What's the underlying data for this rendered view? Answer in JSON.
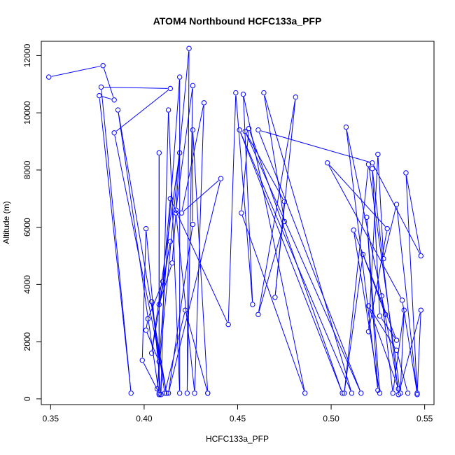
{
  "chart_data": {
    "type": "scatter",
    "title": "ATOM4 Northbound HCFC133a_PFP",
    "xlabel": "HCFC133a_PFP",
    "ylabel": "Altitude (m)",
    "xlim": [
      0.345,
      0.555
    ],
    "ylim": [
      -200,
      12500
    ],
    "x_ticks": [
      0.35,
      0.4,
      0.45,
      0.5,
      0.55
    ],
    "x_tick_labels": [
      "0.35",
      "0.40",
      "0.45",
      "0.50",
      "0.55"
    ],
    "y_ticks": [
      0,
      2000,
      4000,
      6000,
      8000,
      10000,
      12000
    ],
    "y_tick_labels": [
      "0",
      "2000",
      "4000",
      "6000",
      "8000",
      "10000",
      "12000"
    ],
    "grid": false,
    "series": [
      {
        "color": "#0000ff",
        "marker": "open-circle",
        "connected": true,
        "points": [
          [
            0.349,
            11250
          ],
          [
            0.378,
            11650
          ],
          [
            0.384,
            10450
          ],
          [
            0.376,
            10600
          ],
          [
            0.393,
            200
          ],
          [
            0.377,
            10900
          ],
          [
            0.414,
            10850
          ],
          [
            0.384,
            9300
          ],
          [
            0.412,
            200
          ],
          [
            0.386,
            10100
          ],
          [
            0.408,
            150
          ],
          [
            0.408,
            8600
          ],
          [
            0.408,
            200
          ],
          [
            0.399,
            1350
          ],
          [
            0.401,
            5950
          ],
          [
            0.409,
            150
          ],
          [
            0.413,
            10100
          ],
          [
            0.419,
            200
          ],
          [
            0.419,
            11250
          ],
          [
            0.407,
            350
          ],
          [
            0.424,
            12250
          ],
          [
            0.423,
            200
          ],
          [
            0.426,
            10950
          ],
          [
            0.417,
            6600
          ],
          [
            0.419,
            8600
          ],
          [
            0.404,
            1600
          ],
          [
            0.414,
            5500
          ],
          [
            0.408,
            3300
          ],
          [
            0.415,
            4750
          ],
          [
            0.417,
            6500
          ],
          [
            0.427,
            200
          ],
          [
            0.432,
            10350
          ],
          [
            0.42,
            6500
          ],
          [
            0.441,
            7700
          ],
          [
            0.413,
            200
          ],
          [
            0.426,
            6100
          ],
          [
            0.426,
            9400
          ],
          [
            0.434,
            200
          ],
          [
            0.434,
            200
          ],
          [
            0.422,
            3100
          ],
          [
            0.411,
            200
          ],
          [
            0.404,
            3400
          ],
          [
            0.408,
            1300
          ],
          [
            0.401,
            2400
          ],
          [
            0.402,
            2800
          ],
          [
            0.41,
            4100
          ],
          [
            0.414,
            7000
          ],
          [
            0.445,
            2600
          ],
          [
            0.449,
            10700
          ],
          [
            0.458,
            3300
          ],
          [
            0.453,
            10650
          ],
          [
            0.486,
            200
          ],
          [
            0.452,
            6500
          ],
          [
            0.456,
            9450
          ],
          [
            0.506,
            200
          ],
          [
            0.451,
            9400
          ],
          [
            0.511,
            200
          ],
          [
            0.464,
            10700
          ],
          [
            0.475,
            6200
          ],
          [
            0.461,
            2950
          ],
          [
            0.481,
            10550
          ],
          [
            0.47,
            3550
          ],
          [
            0.475,
            6900
          ],
          [
            0.454,
            9350
          ],
          [
            0.516,
            200
          ],
          [
            0.461,
            9400
          ],
          [
            0.522,
            8250
          ],
          [
            0.548,
            5000
          ],
          [
            0.54,
            7900
          ],
          [
            0.546,
            200
          ],
          [
            0.538,
            3450
          ],
          [
            0.498,
            8250
          ],
          [
            0.53,
            5950
          ],
          [
            0.52,
            2350
          ],
          [
            0.525,
            8550
          ],
          [
            0.528,
            4900
          ],
          [
            0.535,
            6800
          ],
          [
            0.546,
            150
          ],
          [
            0.548,
            3100
          ],
          [
            0.536,
            150
          ],
          [
            0.522,
            8050
          ],
          [
            0.526,
            2900
          ],
          [
            0.535,
            2050
          ],
          [
            0.512,
            5900
          ],
          [
            0.526,
            200
          ],
          [
            0.519,
            6350
          ],
          [
            0.525,
            300
          ],
          [
            0.508,
            9500
          ],
          [
            0.529,
            2950
          ],
          [
            0.517,
            5050
          ],
          [
            0.507,
            200
          ],
          [
            0.52,
            8200
          ],
          [
            0.537,
            200
          ],
          [
            0.539,
            3100
          ],
          [
            0.533,
            200
          ],
          [
            0.527,
            3600
          ],
          [
            0.536,
            350
          ],
          [
            0.52,
            3250
          ],
          [
            0.535,
            1700
          ],
          [
            0.541,
            200
          ]
        ]
      }
    ]
  }
}
